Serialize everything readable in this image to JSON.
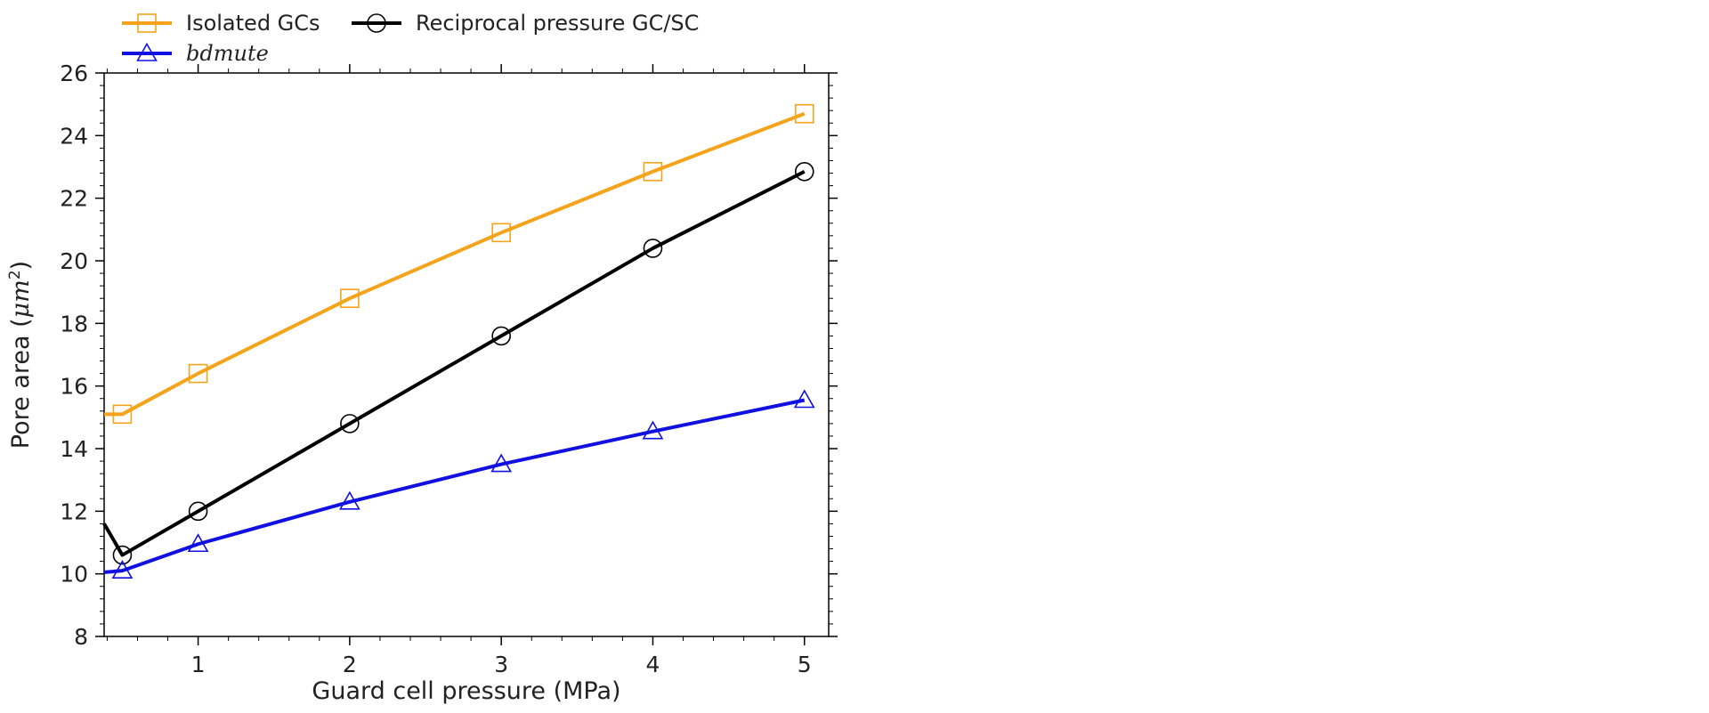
{
  "chart_data": {
    "type": "line",
    "title": "",
    "xlabel": "Guard cell pressure (MPa)",
    "ylabel": {
      "prefix": "Pore area (",
      "unit": "μm",
      "exponent": "2",
      "suffix": ")"
    },
    "xlim": [
      0.38,
      5.16
    ],
    "ylim": [
      8,
      26
    ],
    "xticks": [
      1,
      2,
      3,
      4,
      5
    ],
    "yticks": [
      8,
      10,
      12,
      14,
      16,
      18,
      20,
      22,
      24,
      26
    ],
    "legend_position": "top-left",
    "grid": false,
    "series": [
      {
        "name": "Isolated GCs",
        "color": "#f5a31a",
        "marker": "square",
        "italic": false,
        "x": [
          0.5,
          1,
          2,
          3,
          4,
          5
        ],
        "y": [
          15.1,
          16.4,
          18.8,
          20.9,
          22.85,
          24.7
        ],
        "line_x": [
          0.38,
          0.5,
          1,
          2,
          3,
          4,
          5
        ],
        "line_y": [
          15.1,
          15.1,
          16.4,
          18.8,
          20.9,
          22.85,
          24.7
        ]
      },
      {
        "name": "Reciprocal pressure GC/SC",
        "color": "#000000",
        "marker": "circle",
        "italic": false,
        "x": [
          0.5,
          1,
          2,
          3,
          4,
          5
        ],
        "y": [
          10.6,
          12.0,
          14.8,
          17.6,
          20.4,
          22.85
        ],
        "line_x": [
          0.38,
          0.5,
          1,
          2,
          3,
          4,
          5
        ],
        "line_y": [
          11.6,
          10.6,
          12.0,
          14.8,
          17.6,
          20.4,
          22.85
        ]
      },
      {
        "name": "bdmute",
        "color": "#1010e0",
        "marker": "triangle",
        "italic": true,
        "x": [
          0.5,
          1,
          2,
          3,
          4,
          5
        ],
        "y": [
          10.1,
          10.95,
          12.3,
          13.5,
          14.55,
          15.55
        ],
        "line_x": [
          0.38,
          0.5,
          1,
          2,
          3,
          4,
          5
        ],
        "line_y": [
          10.05,
          10.1,
          10.95,
          12.3,
          13.5,
          14.55,
          15.55
        ]
      }
    ]
  }
}
